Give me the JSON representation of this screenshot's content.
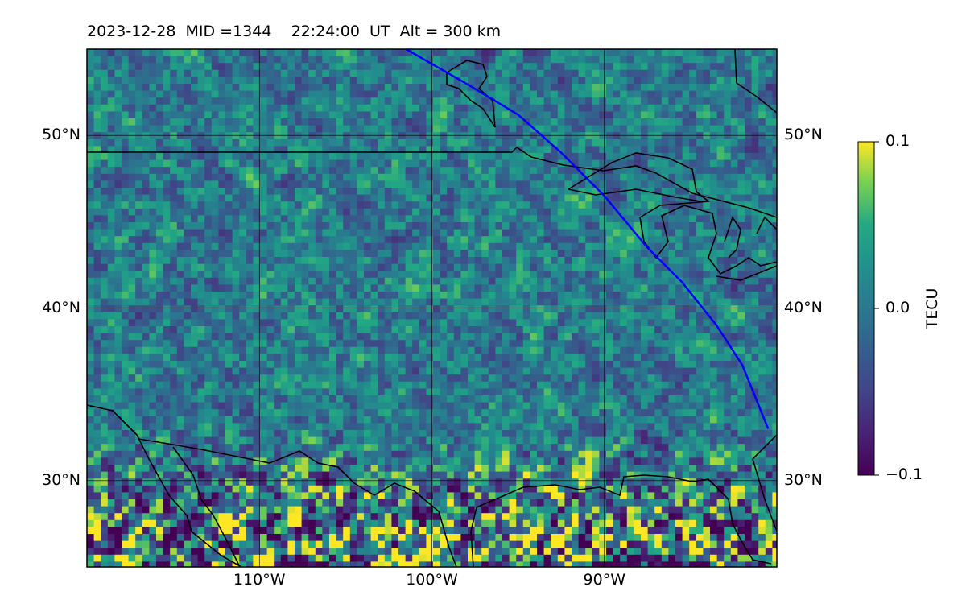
{
  "title": "2023-12-28  MID =1344    22:24:00  UT  Alt = 300 km",
  "map": {
    "lon_range": [
      -120,
      -80
    ],
    "lat_range": [
      25,
      55
    ],
    "lat_ticks": [
      {
        "value": 50,
        "label": "50°N"
      },
      {
        "value": 40,
        "label": "40°N"
      },
      {
        "value": 30,
        "label": "30°N"
      }
    ],
    "lon_ticks": [
      {
        "value": -110,
        "label": "110°W"
      },
      {
        "value": -100,
        "label": "100°W"
      },
      {
        "value": -90,
        "label": "90°W"
      }
    ],
    "grid": true,
    "colormap": "viridis",
    "track": {
      "color": "#0000ff",
      "points": [
        [
          -101.5,
          55
        ],
        [
          -98,
          53
        ],
        [
          -95,
          51.2
        ],
        [
          -92.5,
          49
        ],
        [
          -90,
          46.5
        ],
        [
          -87.5,
          43.5
        ],
        [
          -85.5,
          41.5
        ],
        [
          -83.5,
          39
        ],
        [
          -82,
          36.7
        ],
        [
          -80.5,
          33
        ]
      ]
    }
  },
  "colorbar": {
    "label": "TECU",
    "min": -0.1,
    "max": 0.1,
    "ticks": [
      {
        "value": 0.1,
        "label": "0.1"
      },
      {
        "value": 0.0,
        "label": "0.0"
      },
      {
        "value": -0.1,
        "label": "−0.1"
      }
    ]
  }
}
